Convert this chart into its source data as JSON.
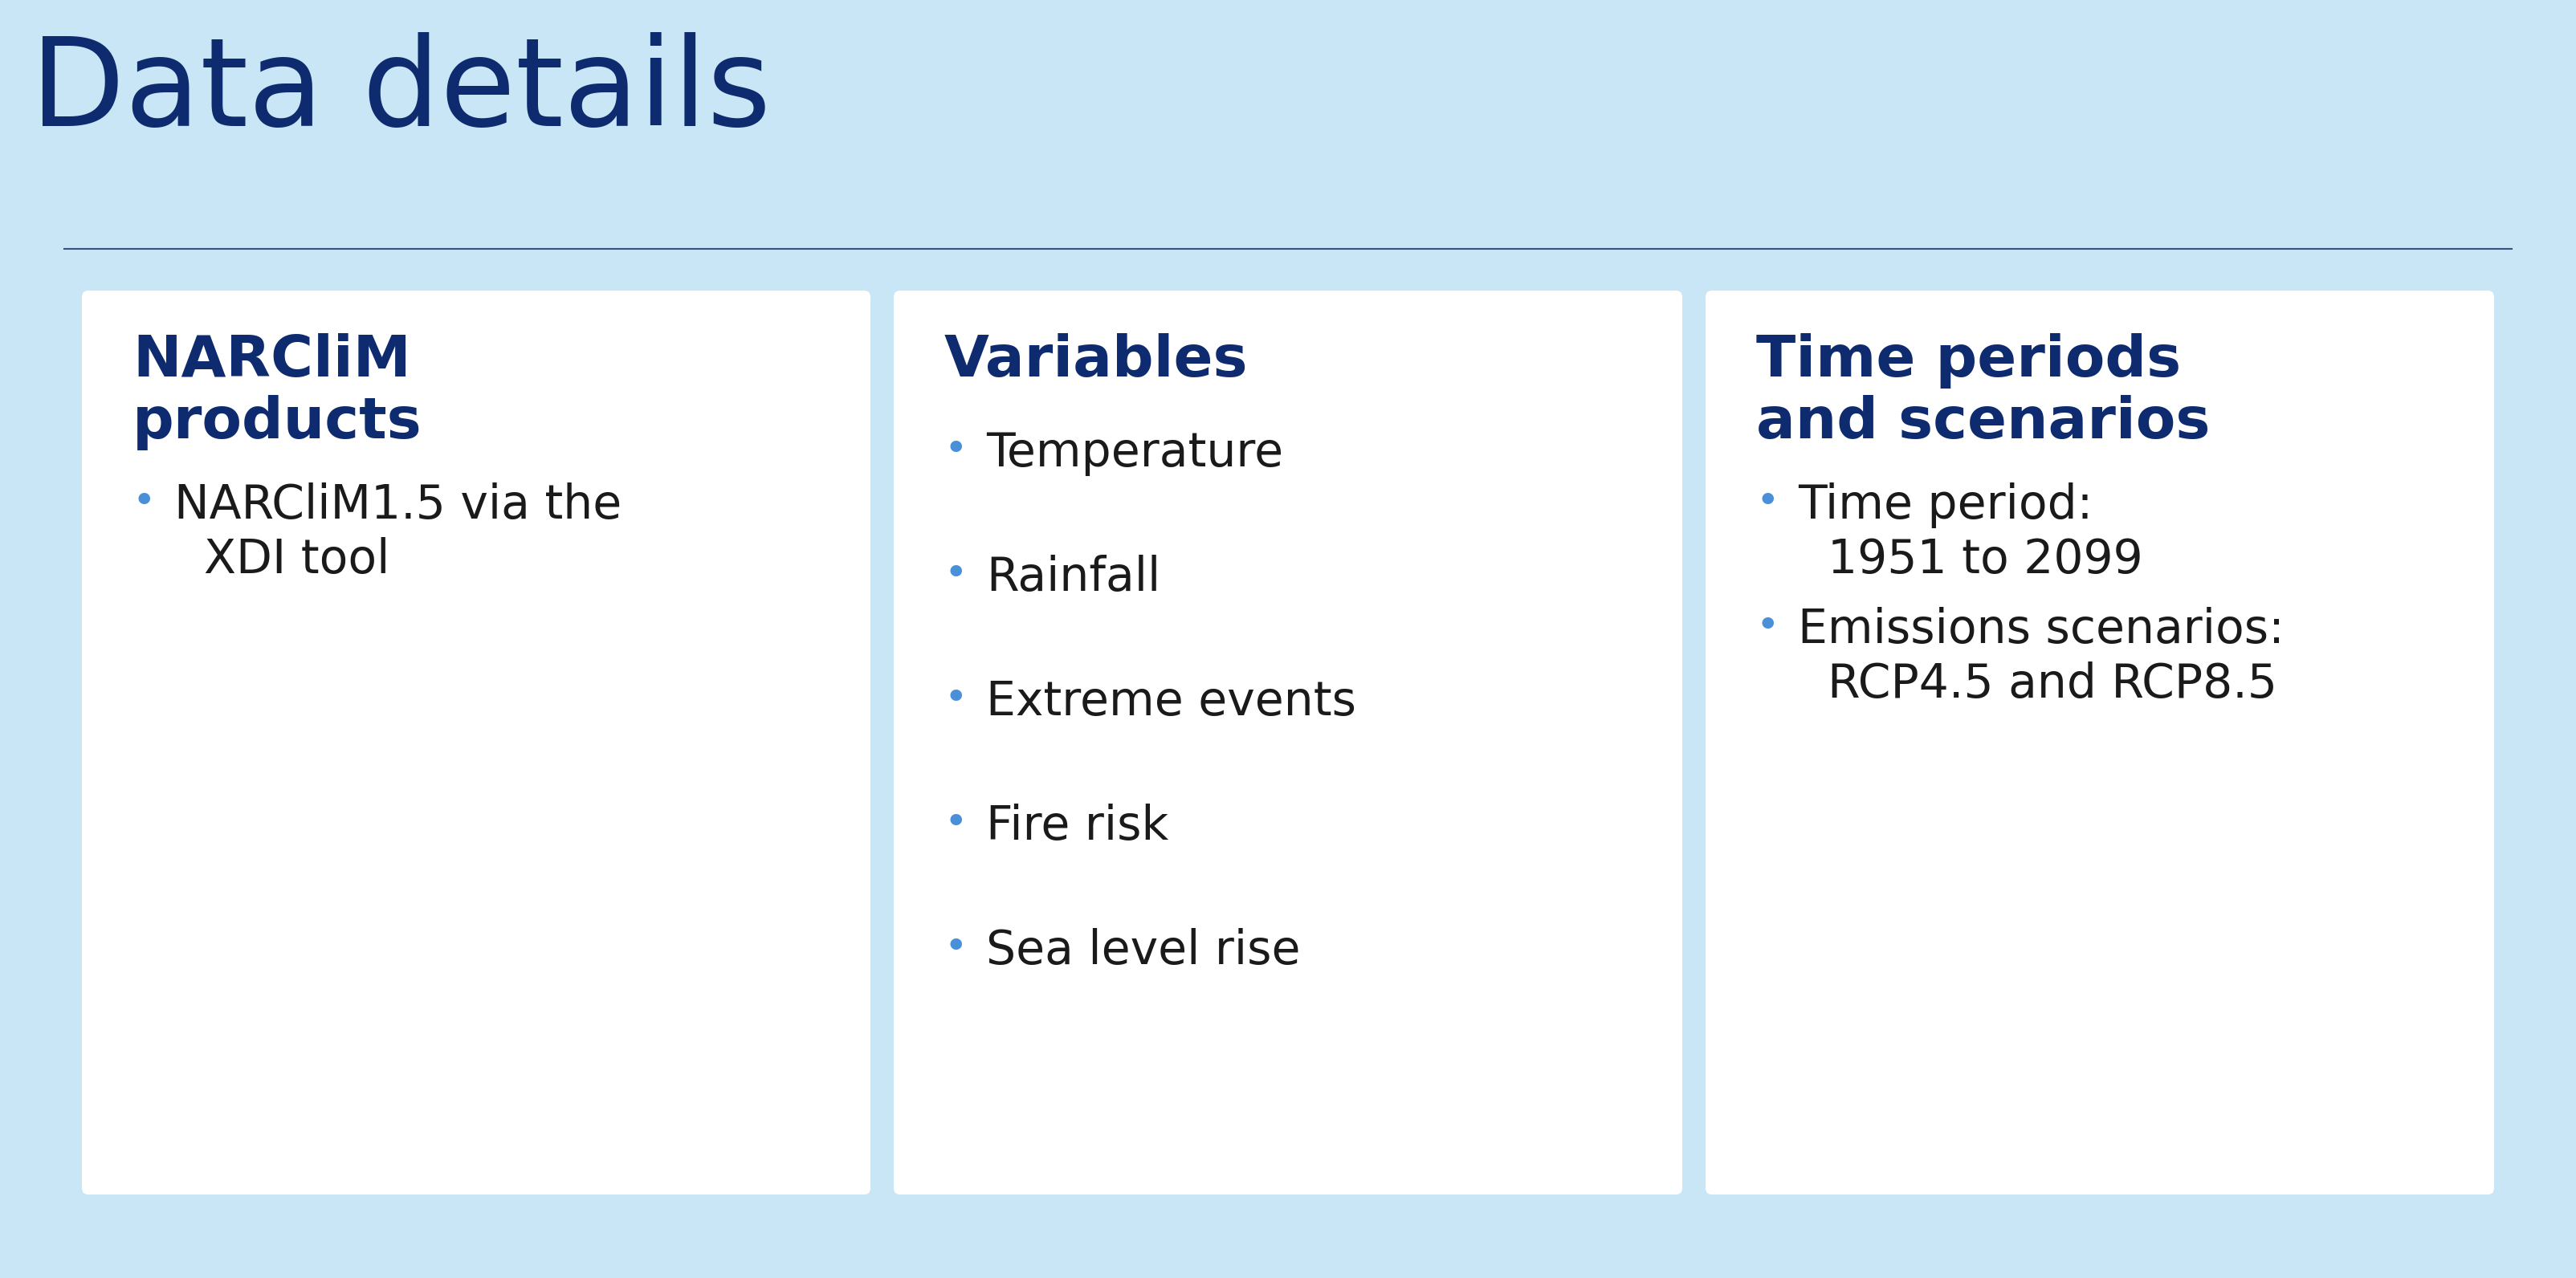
{
  "title": "Data details",
  "title_color": "#0d2b6e",
  "background_color": "#c8e6f5",
  "card_bg_color": "#ffffff",
  "separator_color": "#1a3a6b",
  "heading_color": "#0d2b6e",
  "body_color": "#1a1a1a",
  "bullet_color": "#4a90d9",
  "title_fontsize": 110,
  "heading_fontsize": 52,
  "body_fontsize": 42,
  "bullet_fontsize": 36,
  "cards": [
    {
      "heading": "NARCliM\nproducts",
      "items": [
        [
          "NARCliM1.5 via the",
          "  XDI tool"
        ]
      ]
    },
    {
      "heading": "Variables",
      "items": [
        [
          "Temperature"
        ],
        [
          "Rainfall"
        ],
        [
          "Extreme events"
        ],
        [
          "Fire risk"
        ],
        [
          "Sea level rise"
        ]
      ]
    },
    {
      "heading": "Time periods\nand scenarios",
      "items": [
        [
          "Time period:",
          "  1951 to 2099"
        ],
        [
          "Emissions scenarios:",
          "  RCP4.5 and RCP8.5"
        ]
      ]
    }
  ]
}
